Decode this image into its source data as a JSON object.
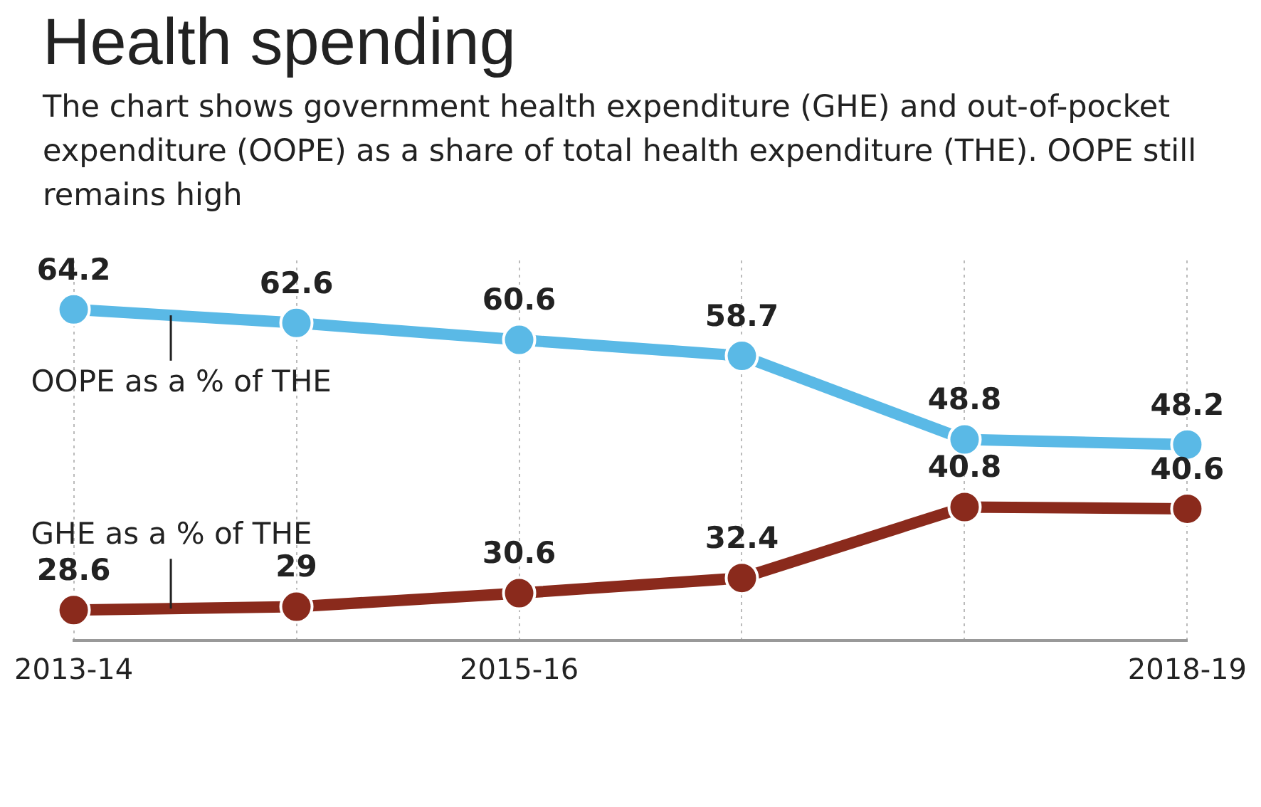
{
  "chart_data": {
    "type": "line",
    "title": "Health spending",
    "subtitle": "The chart shows government health expenditure (GHE) and out-of-pocket expenditure (OOPE) as a share of total health expenditure (THE). OOPE still remains high",
    "categories": [
      "2013-14",
      null,
      "2015-16",
      null,
      null,
      "2018-19"
    ],
    "series": [
      {
        "name": "OOPE as a % of THE",
        "color": "#5ab9e6",
        "values": [
          64.2,
          62.6,
          60.6,
          58.7,
          48.8,
          48.2
        ]
      },
      {
        "name": "GHE as a % of THE",
        "color": "#8a2a1c",
        "values": [
          28.6,
          29,
          30.6,
          32.4,
          40.8,
          40.6
        ]
      }
    ],
    "data_labels": true,
    "grid": "x",
    "legend": false,
    "marker": "circle",
    "line_style": "solid",
    "tick_labels": "x"
  }
}
